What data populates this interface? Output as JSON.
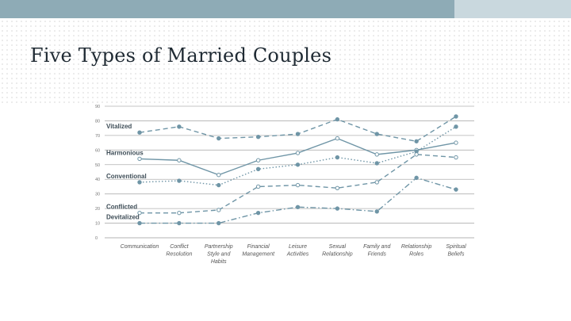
{
  "slide": {
    "title": "Five Types of Married Couples"
  },
  "colors": {
    "band_dark": "#8eabb6",
    "band_light": "#c9d8de",
    "line": "#6f95a6",
    "grid": "#b0b0b0"
  },
  "chart_data": {
    "type": "line",
    "title": "",
    "xlabel": "",
    "ylabel": "",
    "ylim": [
      0,
      90
    ],
    "y_ticks": [
      0,
      10,
      20,
      30,
      40,
      50,
      60,
      70,
      80,
      90
    ],
    "grid": "horizontal",
    "legend": "inline-left",
    "categories": [
      [
        "Communication"
      ],
      [
        "Conflict",
        "Resolution"
      ],
      [
        "Partnership",
        "Style and",
        "Habits"
      ],
      [
        "Financial",
        "Management"
      ],
      [
        "Leisure",
        "Activities"
      ],
      [
        "Sexual",
        "Relationship"
      ],
      [
        "Family and",
        "Friends"
      ],
      [
        "Relationship",
        "Roles"
      ],
      [
        "Spiritual",
        "Beliefs"
      ]
    ],
    "series": [
      {
        "name": "Vitalized",
        "style": "dash",
        "marker": "filled",
        "values": [
          72,
          76,
          68,
          69,
          71,
          81,
          71,
          66,
          83
        ]
      },
      {
        "name": "Harmonious",
        "style": "solid",
        "marker": "open",
        "values": [
          54,
          53,
          43,
          53,
          58,
          68,
          57,
          60,
          65
        ]
      },
      {
        "name": "Conventional",
        "style": "dot",
        "marker": "filled",
        "values": [
          38,
          39,
          36,
          47,
          50,
          55,
          51,
          59,
          76
        ]
      },
      {
        "name": "Conflicted",
        "style": "dash",
        "marker": "open",
        "values": [
          17,
          17,
          19,
          35,
          36,
          34,
          38,
          57,
          55
        ]
      },
      {
        "name": "Devitalized",
        "style": "dashdot",
        "marker": "filled",
        "values": [
          10,
          10,
          10,
          17,
          21,
          20,
          18,
          41,
          33
        ]
      }
    ]
  }
}
